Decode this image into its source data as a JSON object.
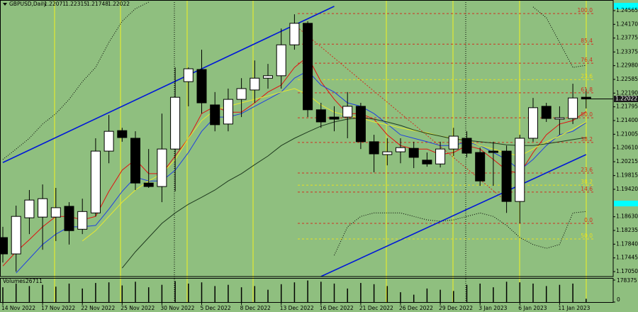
{
  "chart_data": {
    "type": "candlestick",
    "title": "GBPUSD,Daily",
    "volume_label": "Volumes",
    "categories": [
      "14 Nov 2022",
      null,
      null,
      "17 Nov 2022",
      null,
      null,
      "22 Nov 2022",
      null,
      null,
      "25 Nov 2022",
      null,
      null,
      "30 Nov 2022",
      null,
      null,
      "5 Dec 2022",
      null,
      null,
      "8 Dec 2022",
      null,
      null,
      "13 Dec 2022",
      null,
      null,
      "16 Dec 2022",
      null,
      null,
      "21 Dec 2022",
      null,
      null,
      "26 Dec 2022",
      null,
      null,
      "29 Dec 2022",
      null,
      null,
      "3 Jan 2023",
      null,
      null,
      "6 Jan 2023",
      null,
      null,
      "11 Jan 2023",
      null,
      null
    ],
    "open": [
      1.1803,
      1.1756,
      1.186,
      1.1862,
      1.1862,
      1.1893,
      1.1827,
      1.1874,
      1.2052,
      1.2111,
      1.2089,
      1.196,
      1.195,
      1.2058,
      1.2252,
      1.2287,
      1.2185,
      1.213,
      1.2201,
      1.2228,
      1.2262,
      1.2269,
      1.2358,
      1.242,
      1.2171,
      1.215,
      1.215,
      1.2181,
      1.2079,
      1.2042,
      1.205,
      1.206,
      1.2026,
      1.2015,
      1.2058,
      1.2089,
      1.2048,
      1.2052,
      1.2052,
      1.1907,
      1.2089,
      1.2181,
      1.2144,
      1.2146,
      1.22071
    ],
    "high": [
      1.1834,
      1.1895,
      1.194,
      1.1956,
      1.1946,
      1.1905,
      1.1915,
      1.2089,
      1.2156,
      1.2119,
      1.2109,
      1.2058,
      1.216,
      1.2293,
      1.2293,
      1.2344,
      1.2222,
      1.2232,
      1.2262,
      1.2313,
      1.2303,
      1.2405,
      1.2446,
      1.2426,
      1.2191,
      1.2181,
      1.2222,
      1.2191,
      1.2099,
      1.2089,
      1.2089,
      1.2079,
      1.2048,
      1.2079,
      1.2119,
      1.2109,
      1.2062,
      1.2079,
      1.2068,
      1.2099,
      1.2205,
      1.2191,
      1.2181,
      1.2246,
      1.22315
    ],
    "low": [
      1.1731,
      1.1705,
      1.1813,
      1.1768,
      1.1793,
      1.1783,
      1.1813,
      1.1864,
      1.2017,
      1.2079,
      1.194,
      1.1946,
      1.1905,
      1.1936,
      1.2181,
      1.216,
      1.2109,
      1.2109,
      1.215,
      1.2191,
      1.2232,
      1.2232,
      1.2344,
      1.215,
      1.2119,
      1.2109,
      1.2089,
      1.2058,
      1.1991,
      1.2011,
      1.2017,
      1.2003,
      1.2007,
      1.2005,
      1.2038,
      1.2034,
      1.1952,
      1.1952,
      1.1874,
      1.1844,
      1.2079,
      1.2136,
      1.2099,
      1.213,
      1.21748
    ],
    "close": [
      1.1756,
      1.1864,
      1.1911,
      1.1915,
      1.1889,
      1.1823,
      1.1878,
      1.2052,
      1.2109,
      1.2091,
      1.196,
      1.195,
      1.2058,
      1.2207,
      1.2289,
      1.2191,
      1.2128,
      1.2201,
      1.2232,
      1.2262,
      1.2269,
      1.2358,
      1.242,
      1.2171,
      1.2136,
      1.2144,
      1.2181,
      1.2079,
      1.2044,
      1.205,
      1.2062,
      1.2034,
      1.2015,
      1.2058,
      1.2095,
      1.2046,
      1.1966,
      1.2048,
      1.1907,
      1.2089,
      1.2177,
      1.2146,
      1.2148,
      1.2205,
      1.22022
    ],
    "volumes": [
      120000,
      150000,
      130000,
      140000,
      125000,
      150000,
      110000,
      155000,
      160000,
      135000,
      165000,
      120000,
      140000,
      170000,
      150000,
      160000,
      130000,
      140000,
      120000,
      130000,
      100000,
      145000,
      160000,
      175000,
      165000,
      150000,
      110000,
      155000,
      145000,
      130000,
      80000,
      60000,
      110000,
      100000,
      90000,
      140000,
      150000,
      120000,
      165000,
      160000,
      150000,
      130000,
      140000,
      150000,
      26711
    ],
    "series": [
      {
        "color": "#e01010",
        "dash": false,
        "values": [
          1.1721,
          1.1762,
          1.1797,
          1.1834,
          1.1864,
          1.1864,
          1.1854,
          1.1864,
          1.1936,
          1.1997,
          1.2028,
          1.1987,
          1.1987,
          1.2038,
          1.2089,
          1.216,
          1.2181,
          1.2164,
          1.2164,
          1.2191,
          1.2222,
          1.2242,
          1.2293,
          1.2324,
          1.2252,
          1.2201,
          1.216,
          1.216,
          1.2144,
          1.2099,
          1.2068,
          1.2058,
          1.2058,
          1.2042,
          1.2048,
          1.2068,
          1.2058,
          1.2028,
          1.1997,
          1.1987,
          1.2048,
          1.2099,
          1.213,
          1.214,
          1.2166
        ]
      },
      {
        "color": "#2040e0",
        "dash": false,
        "values": [
          null,
          1.1701,
          1.1742,
          1.1783,
          1.1813,
          1.1834,
          1.1834,
          1.1838,
          1.1885,
          1.1936,
          1.1977,
          1.1966,
          1.1966,
          1.1997,
          1.2048,
          1.2109,
          1.215,
          1.215,
          1.216,
          1.2181,
          1.2201,
          1.2222,
          1.2262,
          1.2283,
          1.2242,
          1.2222,
          1.2191,
          1.2181,
          1.216,
          1.213,
          1.2099,
          1.2089,
          1.2079,
          1.2068,
          1.2068,
          1.2079,
          1.2068,
          1.2048,
          1.2028,
          1.1997,
          1.2028,
          1.2068,
          1.2099,
          1.2109,
          1.2134
        ]
      },
      {
        "color": "#e8e830",
        "dash": false,
        "values": [
          null,
          null,
          null,
          null,
          null,
          null,
          1.1793,
          1.1823,
          1.1864,
          1.1905,
          1.194,
          1.1966,
          1.1987,
          1.2028,
          1.2089,
          1.214,
          1.2171,
          1.2181,
          1.2191,
          1.2201,
          1.2211,
          1.2222,
          1.2232,
          1.2215,
          1.2185,
          1.2164,
          1.2154,
          1.2148,
          1.2136,
          1.2128,
          1.2119,
          1.2111,
          1.2105,
          1.2095,
          1.2089,
          1.2083,
          1.2068,
          1.2058,
          1.2046,
          1.2038,
          1.2058,
          1.2079,
          1.2095,
          1.2115,
          1.2136
        ]
      },
      {
        "color": "#1f3a1f",
        "dash": false,
        "values": [
          null,
          null,
          null,
          null,
          null,
          null,
          null,
          null,
          null,
          1.1715,
          1.1762,
          1.1803,
          1.1844,
          1.1874,
          1.1899,
          1.1919,
          1.194,
          1.1966,
          1.1987,
          1.2013,
          1.2038,
          1.2068,
          1.2089,
          1.2107,
          1.2124,
          1.2136,
          1.2144,
          1.2148,
          1.2144,
          1.2136,
          1.2126,
          1.2113,
          1.2103,
          1.2095,
          1.2087,
          1.2083,
          1.2079,
          1.2075,
          1.207,
          1.2068,
          1.2068,
          1.2073,
          1.2079,
          1.2085,
          1.2091
        ]
      },
      {
        "color": "#000000",
        "dash": true,
        "values": [
          1.2028,
          1.2058,
          1.2089,
          1.213,
          1.216,
          1.2201,
          1.2252,
          1.2293,
          1.2365,
          1.2426,
          1.2462,
          1.2481,
          null,
          null,
          null,
          null,
          null,
          null,
          null,
          null,
          null,
          null,
          null,
          null,
          null,
          null,
          null,
          null,
          null,
          null,
          null,
          null,
          null,
          null,
          null,
          null,
          null,
          null,
          null,
          null,
          1.2467,
          1.2436,
          1.2365,
          1.2293,
          1.2299
        ]
      },
      {
        "color": "#000000",
        "dash": true,
        "values": [
          null,
          null,
          null,
          null,
          null,
          null,
          null,
          null,
          null,
          null,
          null,
          null,
          null,
          null,
          null,
          null,
          null,
          null,
          null,
          null,
          null,
          null,
          null,
          null,
          null,
          1.1752,
          1.1834,
          1.1864,
          1.1874,
          1.1874,
          1.1874,
          1.1864,
          1.1854,
          1.185,
          1.1854,
          1.1864,
          1.1874,
          1.1864,
          1.1838,
          1.1803,
          1.1783,
          1.1772,
          1.1783,
          1.1874,
          1.1878
        ]
      }
    ],
    "trendlines": [
      {
        "color": "#0018d8",
        "x": [
          0,
          25
        ],
        "y": [
          1.2019,
          1.2469
        ]
      },
      {
        "color": "#0018d8",
        "x": [
          24,
          44
        ],
        "y": [
          1.1691,
          1.2042
        ]
      }
    ],
    "fib_levels": [
      {
        "color": "#d03020",
        "values": [
          100,
          85.4,
          76.4,
          61.8,
          50,
          38.2,
          23.6,
          14.6,
          0
        ],
        "value_labels": [
          "100.0",
          "85.4",
          "76.4",
          "61.8",
          "50.0",
          "38.2",
          "23.6",
          "14.6",
          "0.0"
        ],
        "prices": [
          1.2448,
          1.236,
          1.2305,
          1.222,
          1.2148,
          1.2077,
          1.1989,
          1.1934,
          1.1844
        ]
      },
      {
        "color": "#e8e020",
        "values": [
          23.6,
          38.2,
          50
        ],
        "value_labels": [
          "23.6",
          "38.2",
          "50.0"
        ],
        "prices": [
          1.2258,
          1.1954,
          1.1799
        ]
      }
    ],
    "ylim": [
      1.16908,
      1.24871
    ],
    "yticks": [
      1.24565,
      {
        "value": 1.2417,
        "label": "1.24170"
      },
      1.23775,
      1.23375,
      {
        "value": 1.2298,
        "label": "1.22980"
      },
      1.22585,
      {
        "value": 1.2219,
        "label": "1.22190"
      },
      1.21795,
      {
        "value": 1.214,
        "label": "1.21400"
      },
      1.21005,
      {
        "value": 1.2061,
        "label": "1.20610"
      },
      1.20215,
      1.19815,
      {
        "value": 1.1942,
        "label": "1.19420"
      },
      {
        "value": 1.1863,
        "label": "1.18630"
      },
      1.18235,
      {
        "value": 1.1784,
        "label": "1.17840"
      },
      1.17445,
      {
        "value": 1.1705,
        "label": "1.17050"
      }
    ],
    "vol_ylim": [
      0,
      178375
    ],
    "vol_yticks": [
      0,
      178375
    ],
    "up_color": "#ffffff",
    "down_color": "#000000"
  }
}
